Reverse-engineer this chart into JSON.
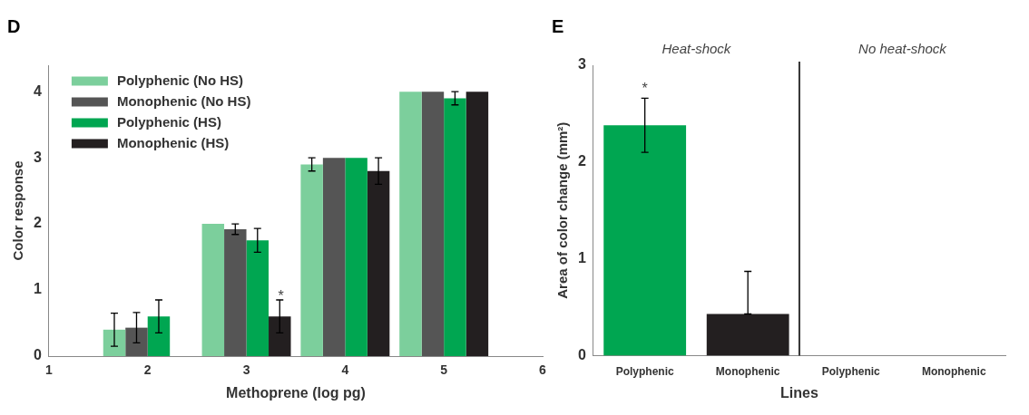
{
  "chart_data": [
    {
      "type": "bar",
      "title": "D",
      "xlabel": "Methoprene (log pg)",
      "ylabel": "Color response",
      "x": [
        2,
        3,
        4,
        5
      ],
      "xlim": [
        1,
        6
      ],
      "xticks": [
        1,
        2,
        3,
        4,
        5,
        6
      ],
      "ylim": [
        0,
        4.4
      ],
      "yticks": [
        0,
        1,
        2,
        3,
        4
      ],
      "legend": "top left",
      "series": [
        {
          "name": "Polyphenic (No HS)",
          "color": "#7ccf9c",
          "values": [
            0.4,
            2.0,
            2.9,
            4.0
          ],
          "errors": [
            0.25,
            null,
            0.1,
            null
          ]
        },
        {
          "name": "Monophenic (No HS)",
          "color": "#555555",
          "values": [
            0.43,
            1.92,
            3.0,
            4.0
          ],
          "errors": [
            0.23,
            0.08,
            null,
            null
          ]
        },
        {
          "name": "Polyphenic (HS)",
          "color": "#00a651",
          "values": [
            0.6,
            1.75,
            3.0,
            3.9
          ],
          "errors": [
            0.25,
            0.18,
            null,
            0.1
          ]
        },
        {
          "name": "Monophenic (HS)",
          "color": "#231f20",
          "values": [
            null,
            0.6,
            2.8,
            4.0
          ],
          "errors": [
            null,
            0.25,
            0.2,
            null
          ]
        }
      ],
      "annotations": [
        "*"
      ]
    },
    {
      "type": "bar",
      "title": "E",
      "xlabel": "Lines",
      "ylabel": "Area of color change (mm²)",
      "categories": [
        "Polyphenic",
        "Monophenic",
        "Polyphenic",
        "Monophenic"
      ],
      "values": [
        2.38,
        0.43,
        0,
        0
      ],
      "colors": [
        "#00a651",
        "#231f20",
        "#00a651",
        "#231f20"
      ],
      "errors": [
        0.28,
        [
          0.43,
          0.87
        ],
        null,
        null
      ],
      "ylim": [
        0,
        3
      ],
      "yticks": [
        0,
        1,
        2,
        3
      ],
      "annotations": [
        "*",
        "Heat-shock",
        "No heat-shock"
      ]
    }
  ]
}
